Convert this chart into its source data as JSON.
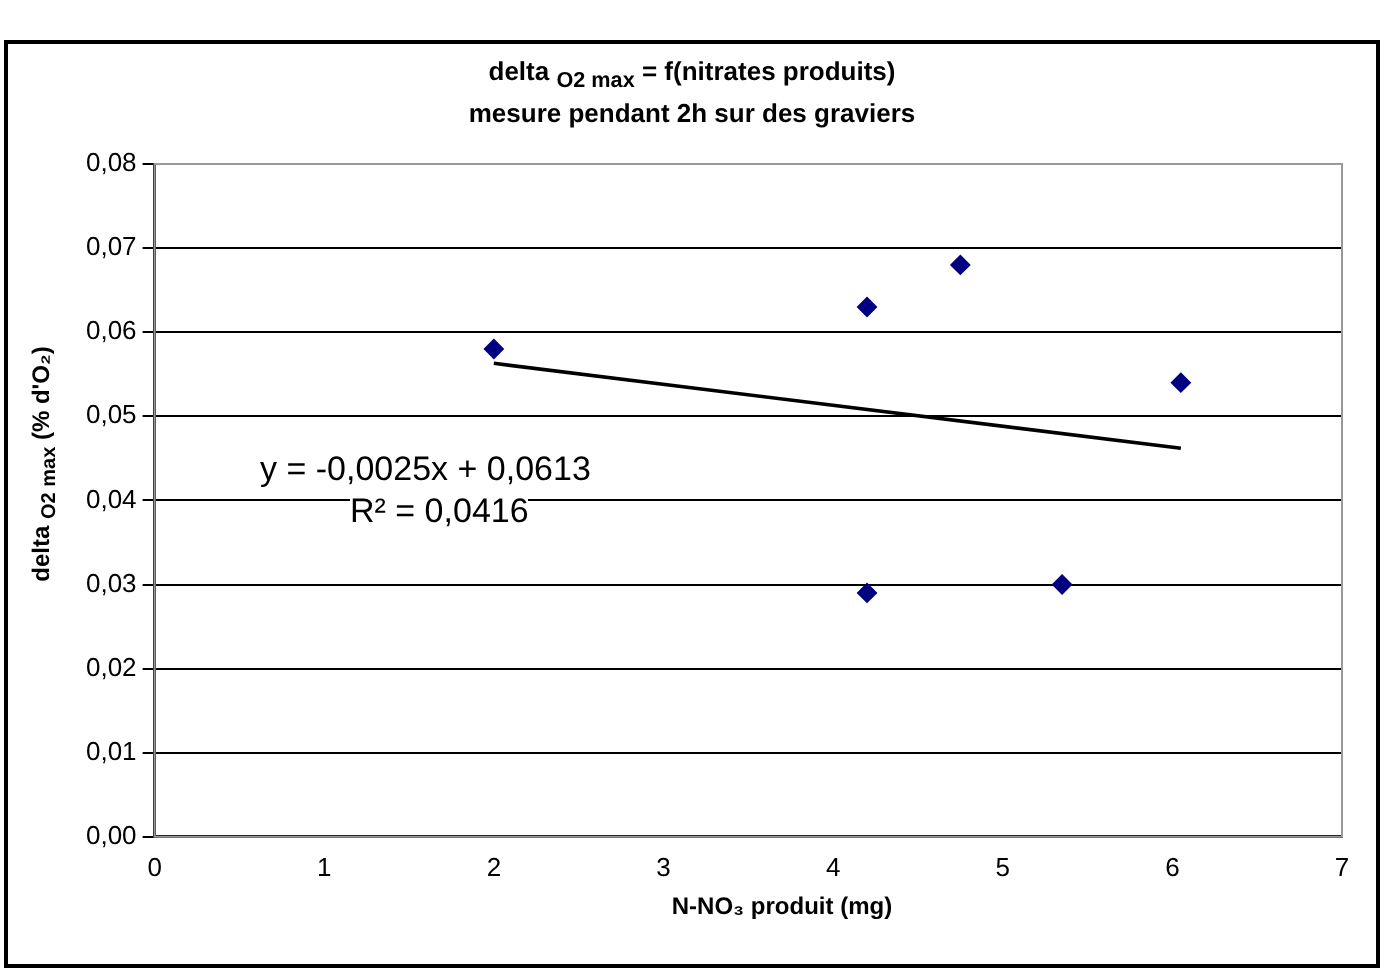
{
  "chart_data": {
    "type": "scatter",
    "title": "delta $_{O2 max}$ = f(nitrates produits)",
    "subtitle": "mesure pendant 2h sur des graviers",
    "xlabel": "N-NO₃ produit (mg)",
    "ylabel": "delta $_{O2 max}$ (% d'O₂)",
    "xlim": [
      0,
      7
    ],
    "xticks": [
      0,
      1,
      2,
      3,
      4,
      5,
      6,
      7
    ],
    "ylim": [
      0,
      0.08
    ],
    "yticks": [
      {
        "value": 0,
        "label": "0,00"
      },
      {
        "value": 0.01,
        "label": "0,01"
      },
      {
        "value": 0.02,
        "label": "0,02"
      },
      {
        "value": 0.03,
        "label": "0,03"
      },
      {
        "value": 0.04,
        "label": "0,04"
      },
      {
        "value": 0.05,
        "label": "0,05"
      },
      {
        "value": 0.06,
        "label": "0,06"
      },
      {
        "value": 0.07,
        "label": "0,07"
      },
      {
        "value": 0.08,
        "label": "0,08"
      }
    ],
    "grid": "y",
    "legend": false,
    "marker": "diamond",
    "series": [
      {
        "color": "#000080",
        "x": [
          2.0,
          4.2,
          4.75,
          6.05,
          4.2,
          5.35
        ],
        "values": [
          0.058,
          0.063,
          0.068,
          0.054,
          0.029,
          0.03
        ]
      },
      {
        "type": "line",
        "color": "#000000",
        "marker": "none",
        "x": [
          2.0,
          6.05
        ],
        "values": [
          0.0563,
          0.0462
        ]
      }
    ],
    "annotations": [
      "y = -0,0025x + 0,0613",
      "R² = 0,0416"
    ]
  }
}
